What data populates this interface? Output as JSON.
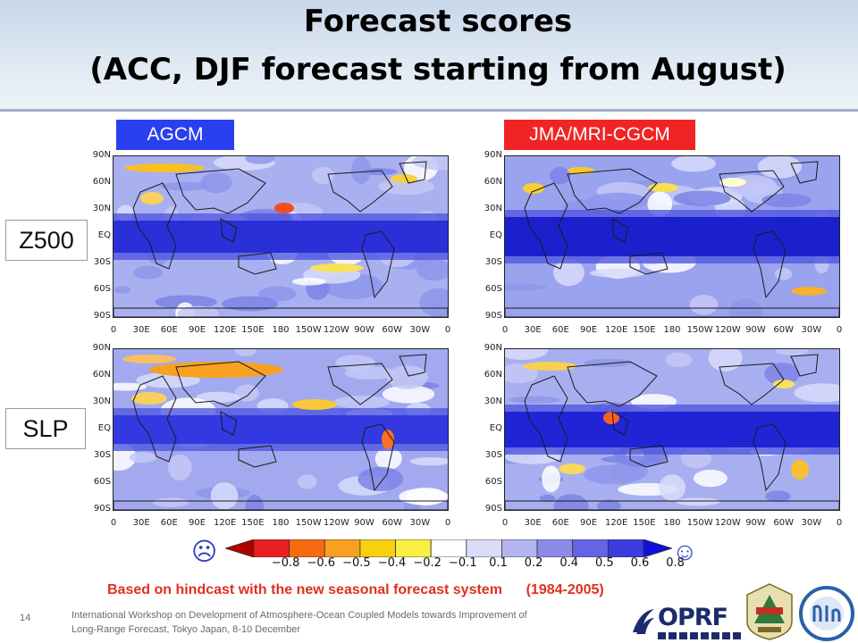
{
  "title": {
    "line1": "Forecast scores",
    "line2": "(ACC, DJF forecast starting from August)"
  },
  "models": {
    "left": "AGCM",
    "right": "JMA/MRI-CGCM"
  },
  "variables": {
    "top": "Z500",
    "bottom": "SLP"
  },
  "map_axes": {
    "lat_labels": [
      "90N",
      "60N",
      "30N",
      "EQ",
      "30S",
      "60S",
      "90S"
    ],
    "lon_labels": [
      "0",
      "30E",
      "60E",
      "90E",
      "120E",
      "150E",
      "180",
      "150W",
      "120W",
      "90W",
      "60W",
      "30W",
      "0"
    ]
  },
  "colorbar": {
    "labels": [
      "−0.8",
      "−0.6",
      "−0.5",
      "−0.4",
      "−0.2",
      "−0.1",
      "0.1",
      "0.2",
      "0.4",
      "0.5",
      "0.6",
      "0.8"
    ],
    "colors": [
      "#b00000",
      "#e82020",
      "#f86a10",
      "#f8a020",
      "#f8d010",
      "#f8f040",
      "#ffffff",
      "#dcdcf8",
      "#b4b4f0",
      "#8c8ce8",
      "#6464e4",
      "#3c3ce0",
      "#1010d8"
    ],
    "low_face": "☹",
    "high_face": "☺"
  },
  "note": "Based on hindcast with the new seasonal forecast system      (1984-2005)",
  "slide_number": "14",
  "footer": {
    "line1": "International Workshop on Development of Atmosphere-Ocean Coupled Models towards Improvement of",
    "line2": "Long-Range Forecast, Tokyo Japan, 8-10 December"
  },
  "logos": {
    "oprf": "OPRF",
    "seal_icon": "mri-seal-icon",
    "circle_icon": "jma-circle-logo-icon"
  }
}
